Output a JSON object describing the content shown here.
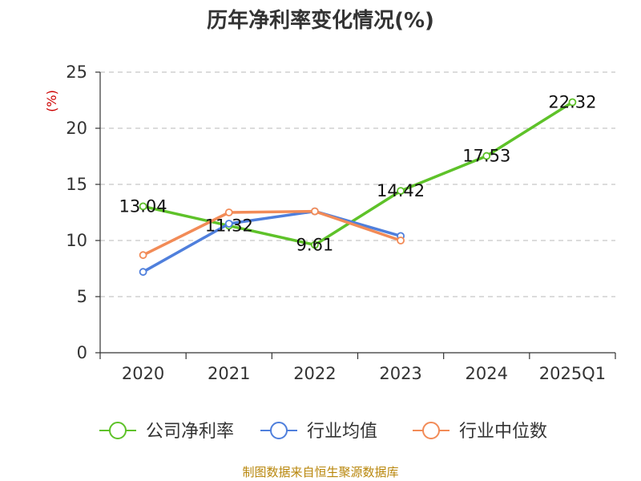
{
  "chart_data": {
    "type": "line",
    "title": "历年净利率变化情况(%)",
    "ylabel": "(%)",
    "ylim": [
      0,
      25
    ],
    "yticks": [
      0,
      5,
      10,
      15,
      20,
      25
    ],
    "grid": true,
    "legend_position": "bottom",
    "categories": [
      "2020",
      "2021",
      "2022",
      "2023",
      "2024",
      "2025Q1"
    ],
    "series": [
      {
        "name": "公司净利率",
        "color": "#5ec229",
        "values": [
          13.04,
          11.32,
          9.61,
          14.42,
          17.53,
          22.32
        ],
        "labels": [
          "13.04",
          "11.32",
          "9.61",
          "14.42",
          "17.53",
          "22.32"
        ]
      },
      {
        "name": "行业均值",
        "color": "#4f7fdc",
        "values": [
          7.2,
          11.5,
          12.6,
          10.4,
          null,
          null
        ]
      },
      {
        "name": "行业中位数",
        "color": "#f28b57",
        "values": [
          8.7,
          12.5,
          12.6,
          10.0,
          null,
          null
        ]
      }
    ]
  },
  "source": "制图数据来自恒生聚源数据库"
}
